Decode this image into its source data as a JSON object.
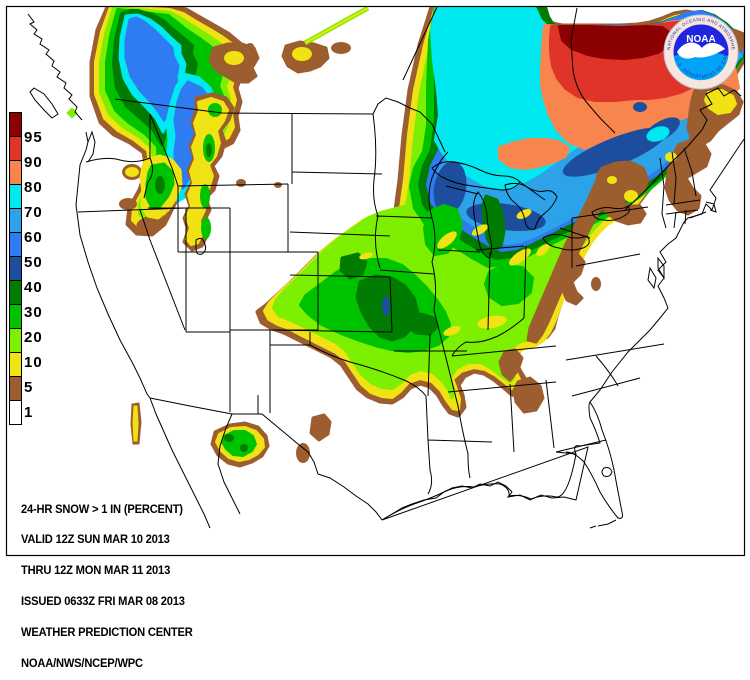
{
  "palette": {
    "p95": "#8B0000",
    "p90": "#E03428",
    "p80": "#F9854E",
    "p70": "#00E8F0",
    "p60": "#2CA2E8",
    "p50": "#2E7BF2",
    "p40": "#1D4E9E",
    "p30": "#007D00",
    "p20": "#00C300",
    "p10": "#7CF000",
    "p5": "#F0E213",
    "p1": "#9D5E2F",
    "p0": "#FFFFFF",
    "line": "#000000",
    "background": "#FFFFFF"
  },
  "legend": {
    "unit": "percent",
    "labels": [
      "95",
      "90",
      "80",
      "70",
      "60",
      "50",
      "40",
      "30",
      "20",
      "10",
      "5",
      "1"
    ],
    "colors": [
      "#8B0000",
      "#E03428",
      "#F9854E",
      "#00E8F0",
      "#2CA2E8",
      "#2E7BF2",
      "#1D4E9E",
      "#007D00",
      "#00C300",
      "#7CF000",
      "#F0E213",
      "#9D5E2F",
      "#FFFFFF"
    ]
  },
  "title_block": {
    "lines": [
      "24-HR SNOW > 1 IN (PERCENT)",
      "VALID 12Z SUN MAR 10 2013",
      "THRU 12Z MON MAR 11 2013",
      "ISSUED 0633Z FRI MAR 08 2013",
      "WEATHER PREDICTION CENTER",
      "NOAA/NWS/NCEP/WPC"
    ]
  },
  "logo": {
    "acronym": "NOAA",
    "ring_text_top": "NATIONAL OCEANIC AND ATMOSPHERIC ADMINISTRATION",
    "ring_text_bottom": "U.S. DEPARTMENT OF COMMERCE",
    "colors": {
      "ring": "#F8E6DE",
      "ring_text": "#2233AA",
      "sky": "#2026DF",
      "sea": "#00A3F5",
      "bird": "#FFFFFF"
    }
  }
}
